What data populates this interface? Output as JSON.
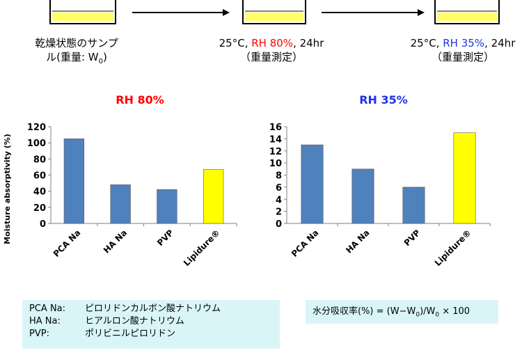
{
  "process": {
    "step1_line1": "乾燥状態のサンプ",
    "step1_line2_pre": "ル(重量: W",
    "step1_line2_sub": "0",
    "step1_line2_post": ")",
    "step2_prefix": "25°C, ",
    "step2_rh": "RH 80%",
    "step2_suffix": ", 24hr",
    "step2_sub": "（重量測定）",
    "step3_prefix": "25°C, ",
    "step3_rh": "RH 35%",
    "step3_suffix": ", 24hr",
    "step3_sub": "（重量測定）"
  },
  "colors": {
    "bar_blue": "#4f81bd",
    "bar_yellow": "#ffff00",
    "rh80_red": "#ff0000",
    "rh35_blue": "#1f33e6",
    "box_bg": "#d9f5f8"
  },
  "chart_data": [
    {
      "type": "bar",
      "title": "RH 80%",
      "ylabel": "Moisture absorptivity (%)",
      "categories": [
        "PCA Na",
        "HA Na",
        "PVP",
        "Lipidure®"
      ],
      "values": [
        105,
        48,
        42,
        67
      ],
      "ylim": [
        0,
        120
      ],
      "yticks": [
        0,
        20,
        40,
        60,
        80,
        100,
        120
      ],
      "grid": false
    },
    {
      "type": "bar",
      "title": "RH 35%",
      "ylabel": "",
      "categories": [
        "PCA Na",
        "HA Na",
        "PVP",
        "Lipidure®"
      ],
      "values": [
        13,
        9,
        6,
        15
      ],
      "ylim": [
        0,
        16
      ],
      "yticks": [
        0,
        2,
        4,
        6,
        8,
        10,
        12,
        14,
        16
      ],
      "grid": false
    }
  ],
  "legend_box": {
    "items": [
      {
        "key": "PCA Na:",
        "value": "ピロリドンカルボン酸ナトリウム"
      },
      {
        "key": "HA Na:",
        "value": "ヒアルロン酸ナトリウム"
      },
      {
        "key": "PVP:",
        "value": "ポリビニルピロリドン"
      }
    ]
  },
  "formula": {
    "pre": "水分吸収率(%) = (W−W",
    "sub1": "0",
    "mid": ")/W",
    "sub2": "0",
    "post": " × 100"
  }
}
